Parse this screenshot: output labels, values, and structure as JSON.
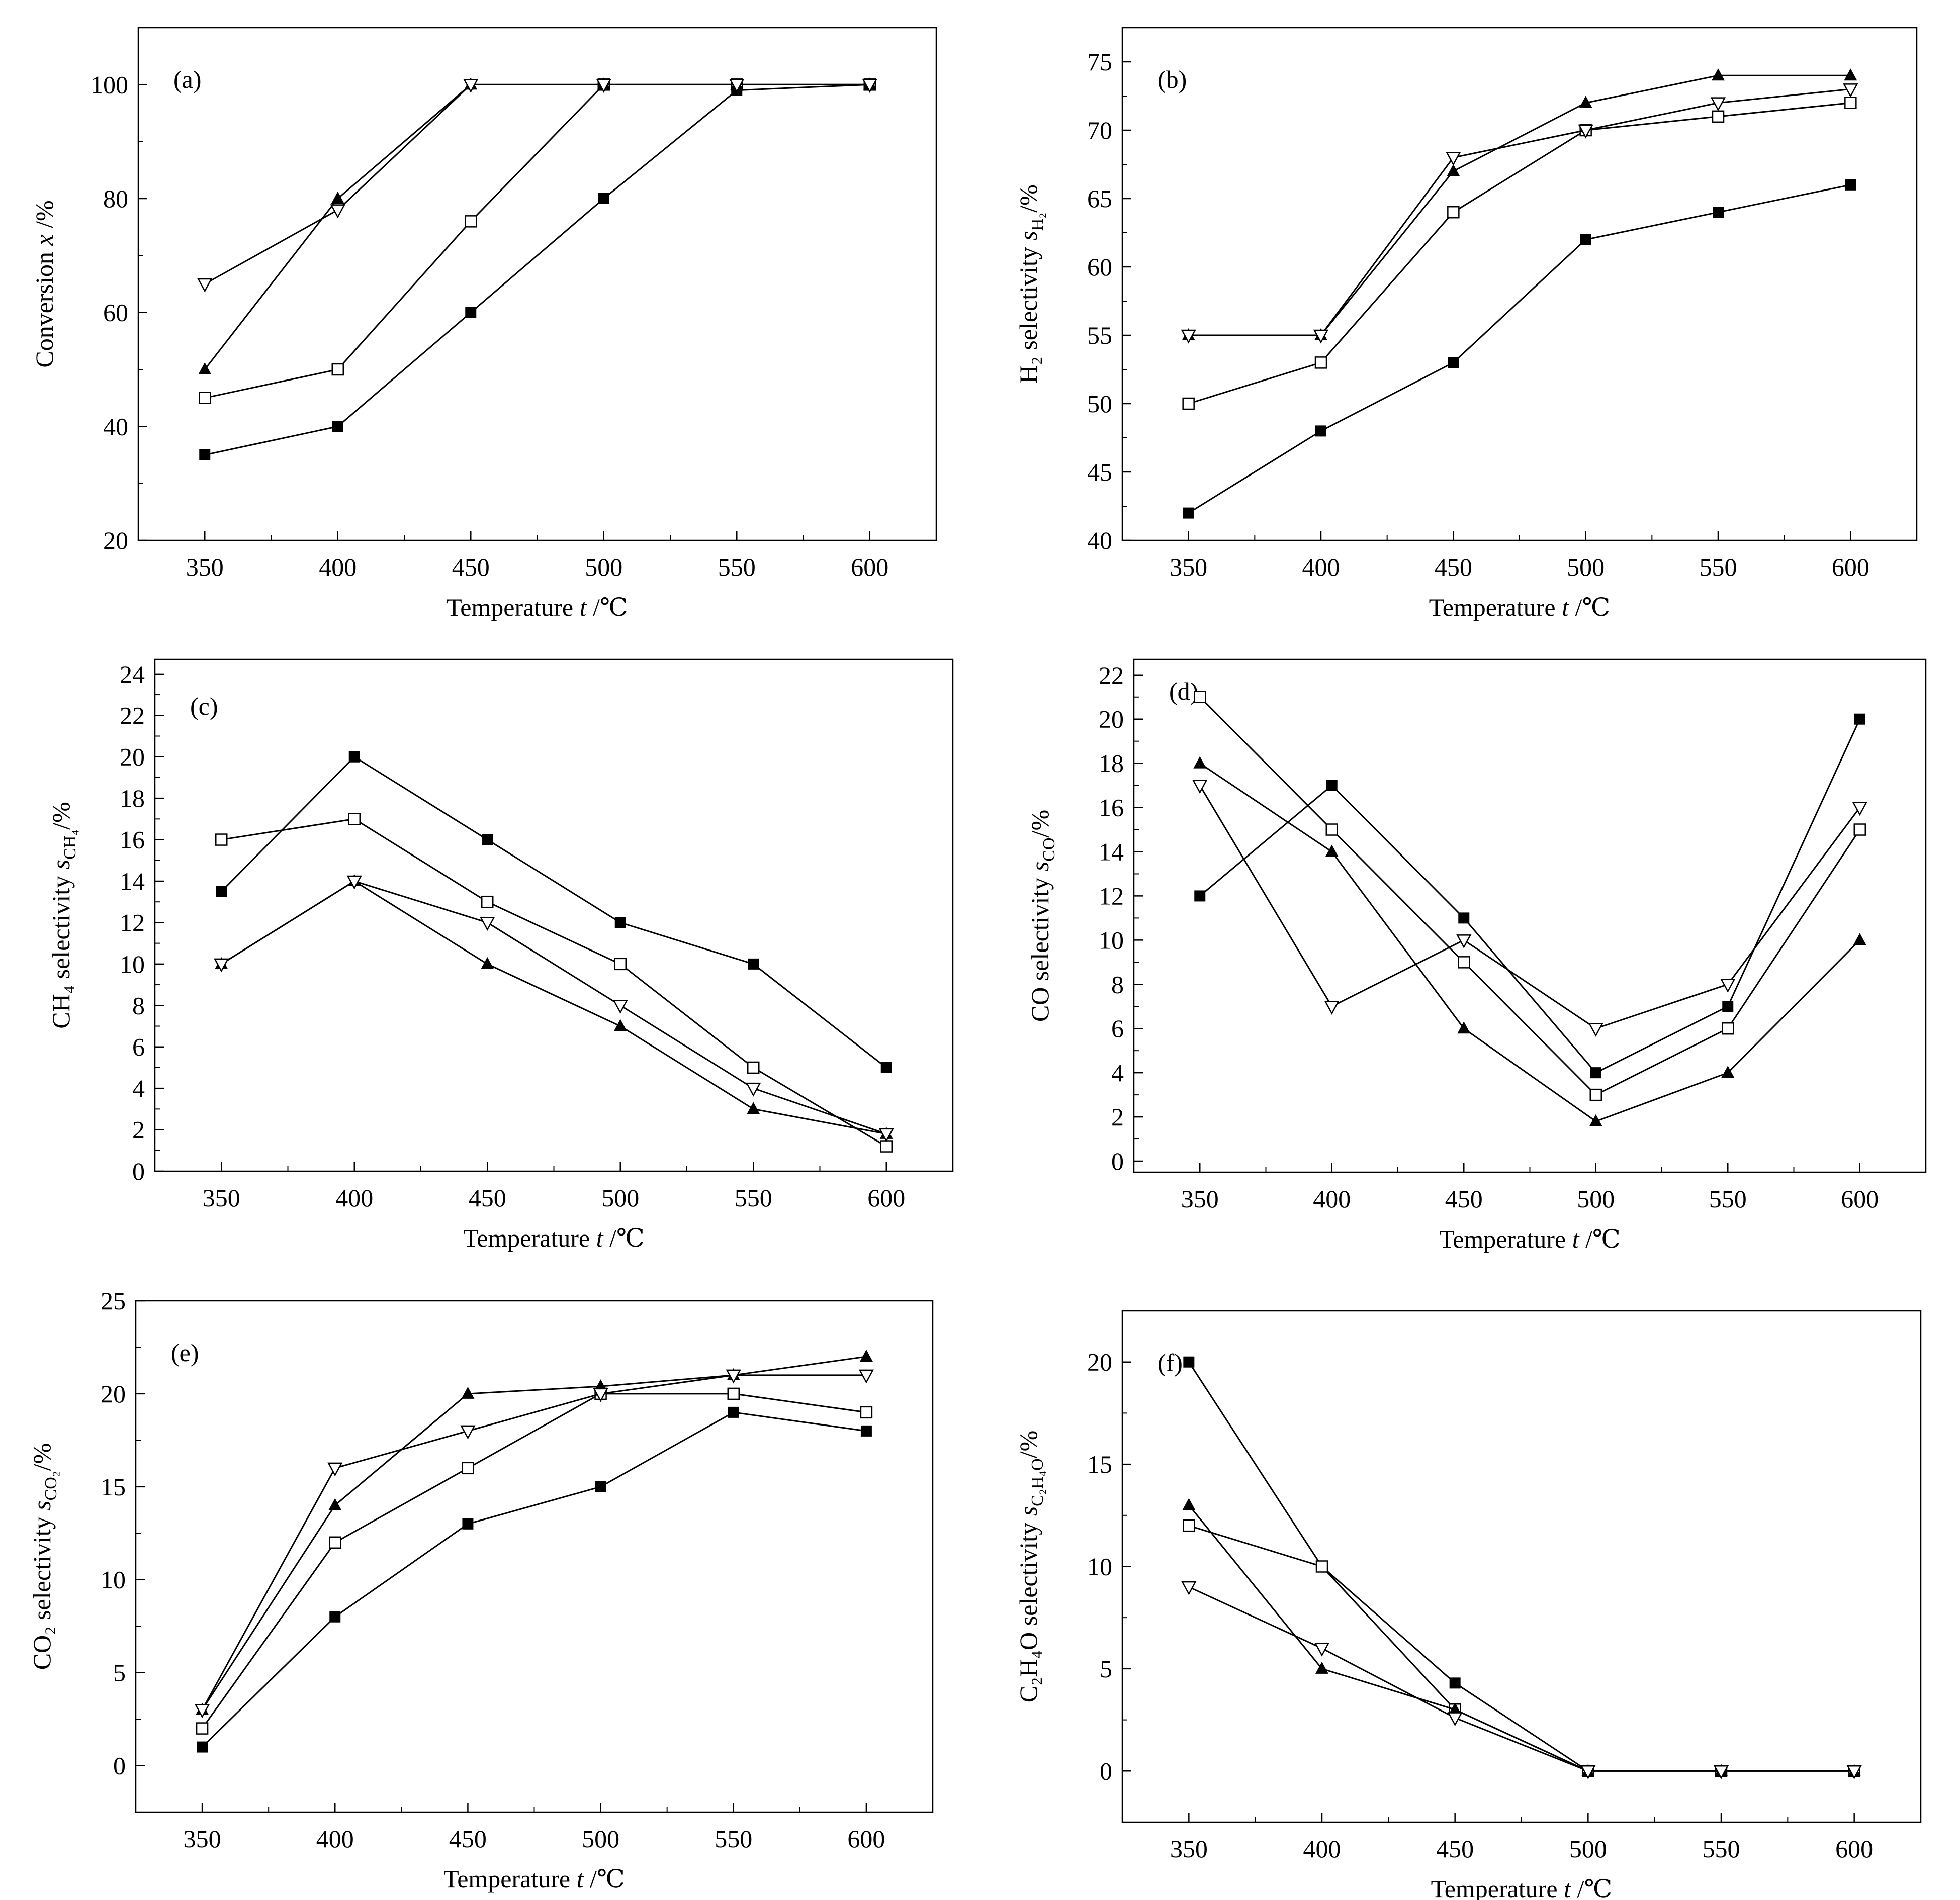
{
  "chart_data": [
    {
      "type": "line",
      "panel_label": "(a)",
      "xlabel": "Temperature",
      "xsym": "t",
      "xunit": "/℃",
      "ylabel": "Conversion",
      "ysym": "x",
      "ysub": "",
      "yunit": "/%",
      "x": [
        350,
        400,
        450,
        500,
        550,
        600
      ],
      "xticks": [
        350,
        400,
        450,
        500,
        550,
        600
      ],
      "xlim": [
        325,
        625
      ],
      "ylim": [
        20,
        110
      ],
      "yticks": [
        20,
        40,
        60,
        80,
        100
      ],
      "series": [
        {
          "marker": "filled-square",
          "values": [
            35,
            40,
            60,
            80,
            99,
            100
          ]
        },
        {
          "marker": "open-square",
          "values": [
            45,
            50,
            76,
            100,
            100,
            100
          ]
        },
        {
          "marker": "filled-triangle-up",
          "values": [
            50,
            80,
            100,
            100,
            100,
            100
          ]
        },
        {
          "marker": "open-triangle-down",
          "values": [
            65,
            78,
            100,
            100,
            100,
            100
          ]
        }
      ]
    },
    {
      "type": "line",
      "panel_label": "(b)",
      "xlabel": "Temperature",
      "xsym": "t",
      "xunit": "/℃",
      "ylabel": "H₂ selectivity",
      "ysym": "s",
      "ysub": "H₂",
      "yunit": "/%",
      "x": [
        350,
        400,
        450,
        500,
        550,
        600
      ],
      "xticks": [
        350,
        400,
        450,
        500,
        550,
        600
      ],
      "xlim": [
        325,
        625
      ],
      "ylim": [
        40,
        77.5
      ],
      "yticks": [
        40,
        45,
        50,
        55,
        60,
        65,
        70,
        75
      ],
      "series": [
        {
          "marker": "filled-square",
          "values": [
            42,
            48,
            53,
            62,
            64,
            66
          ]
        },
        {
          "marker": "open-square",
          "values": [
            50,
            53,
            64,
            70,
            71,
            72
          ]
        },
        {
          "marker": "filled-triangle-up",
          "values": [
            55,
            55,
            67,
            72,
            74,
            74
          ]
        },
        {
          "marker": "open-triangle-down",
          "values": [
            55,
            55,
            68,
            70,
            72,
            73
          ]
        }
      ]
    },
    {
      "type": "line",
      "panel_label": "(c)",
      "xlabel": "Temperature",
      "xsym": "t",
      "xunit": "/℃",
      "ylabel": "CH₄ selectivity",
      "ysym": "s",
      "ysub": "CH₄",
      "yunit": "/%",
      "x": [
        350,
        400,
        450,
        500,
        550,
        600
      ],
      "xticks": [
        350,
        400,
        450,
        500,
        550,
        600
      ],
      "xlim": [
        325,
        625
      ],
      "ylim": [
        0,
        24.7
      ],
      "yticks": [
        0,
        2,
        4,
        6,
        8,
        10,
        12,
        14,
        16,
        18,
        20,
        22,
        24
      ],
      "series": [
        {
          "marker": "filled-square",
          "values": [
            13.5,
            20,
            16,
            12,
            10,
            5
          ]
        },
        {
          "marker": "open-square",
          "values": [
            16,
            17,
            13,
            10,
            5,
            1.2
          ]
        },
        {
          "marker": "filled-triangle-up",
          "values": [
            10,
            14,
            10,
            7,
            3,
            1.8
          ]
        },
        {
          "marker": "open-triangle-down",
          "values": [
            10,
            14,
            12,
            8,
            4,
            1.8
          ]
        }
      ]
    },
    {
      "type": "line",
      "panel_label": "(d)",
      "xlabel": "Temperature",
      "xsym": "t",
      "xunit": "/℃",
      "ylabel": "CO selectivity",
      "ysym": "s",
      "ysub": "CO",
      "yunit": "/%",
      "x": [
        350,
        400,
        450,
        500,
        550,
        600
      ],
      "xticks": [
        350,
        400,
        450,
        500,
        550,
        600
      ],
      "xlim": [
        325,
        625
      ],
      "ylim": [
        -0.5,
        22.7
      ],
      "yticks": [
        0,
        2,
        4,
        6,
        8,
        10,
        12,
        14,
        16,
        18,
        20,
        22
      ],
      "series": [
        {
          "marker": "filled-square",
          "values": [
            12,
            17,
            11,
            4,
            7,
            20
          ]
        },
        {
          "marker": "open-square",
          "values": [
            21,
            15,
            9,
            3,
            6,
            15
          ]
        },
        {
          "marker": "filled-triangle-up",
          "values": [
            18,
            14,
            6,
            1.8,
            4,
            10
          ]
        },
        {
          "marker": "open-triangle-down",
          "values": [
            17,
            7,
            10,
            6,
            8,
            16
          ]
        }
      ]
    },
    {
      "type": "line",
      "panel_label": "(e)",
      "xlabel": "Temperature",
      "xsym": "t",
      "xunit": "/℃",
      "ylabel": "CO₂ selectivity",
      "ysym": "s",
      "ysub": "CO₂",
      "yunit": "/%",
      "x": [
        350,
        400,
        450,
        500,
        550,
        600
      ],
      "xticks": [
        350,
        400,
        450,
        500,
        550,
        600
      ],
      "xlim": [
        325,
        625
      ],
      "ylim": [
        -2.5,
        25
      ],
      "yticks": [
        0,
        5,
        10,
        15,
        20,
        25
      ],
      "series": [
        {
          "marker": "filled-square",
          "values": [
            1,
            8,
            13,
            15,
            19,
            18
          ]
        },
        {
          "marker": "open-square",
          "values": [
            2,
            12,
            16,
            20,
            20,
            19
          ]
        },
        {
          "marker": "filled-triangle-up",
          "values": [
            3,
            14,
            20,
            20.4,
            21,
            22
          ]
        },
        {
          "marker": "open-triangle-down",
          "values": [
            3,
            16,
            18,
            20,
            21,
            21
          ]
        }
      ]
    },
    {
      "type": "line",
      "panel_label": "(f)",
      "xlabel": "Temperature",
      "xsym": "t",
      "xunit": "/℃",
      "ylabel": "C₂H₄O selectivity",
      "ysym": "s",
      "ysub": "C₂H₄O",
      "yunit": "/%",
      "x": [
        350,
        400,
        450,
        500,
        550,
        600
      ],
      "xticks": [
        350,
        400,
        450,
        500,
        550,
        600
      ],
      "xlim": [
        325,
        625
      ],
      "ylim": [
        -2.5,
        22.5
      ],
      "yticks": [
        0,
        5,
        10,
        15,
        20
      ],
      "series": [
        {
          "marker": "filled-square",
          "values": [
            20,
            10,
            4.3,
            0,
            0,
            0
          ]
        },
        {
          "marker": "open-square",
          "values": [
            12,
            10,
            3,
            0,
            0,
            0
          ]
        },
        {
          "marker": "filled-triangle-up",
          "values": [
            13,
            5,
            3,
            0,
            0,
            0
          ]
        },
        {
          "marker": "open-triangle-down",
          "values": [
            9,
            6,
            2.6,
            0,
            0,
            0
          ]
        }
      ]
    }
  ]
}
